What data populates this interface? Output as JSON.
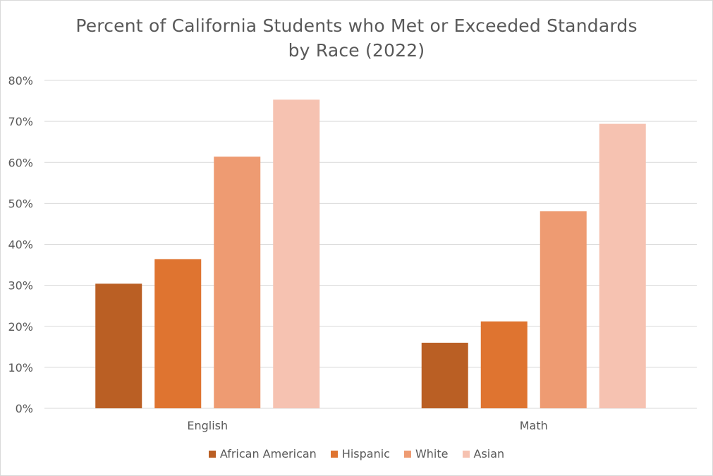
{
  "chart_data": {
    "type": "bar",
    "title": "Percent of California Students who Met or Exceeded Standards by Race (2022)",
    "categories": [
      "English",
      "Math"
    ],
    "series": [
      {
        "name": "African American",
        "color": "#BA5F24",
        "values": [
          30.4,
          16.0
        ]
      },
      {
        "name": "Hispanic",
        "color": "#DF7430",
        "values": [
          36.4,
          21.2
        ]
      },
      {
        "name": "White",
        "color": "#EE9B72",
        "values": [
          61.4,
          48.1
        ]
      },
      {
        "name": "Asian",
        "color": "#F6C2B1",
        "values": [
          75.3,
          69.4
        ]
      }
    ],
    "ylim": [
      0,
      80
    ],
    "yticks": [
      "0%",
      "10%",
      "20%",
      "30%",
      "40%",
      "50%",
      "60%",
      "70%",
      "80%"
    ],
    "grid": true,
    "legend_position": "bottom"
  }
}
